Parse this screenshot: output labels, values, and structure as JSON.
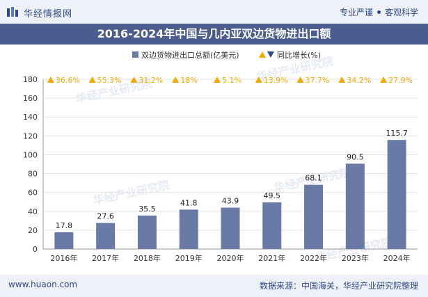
{
  "header": {
    "brand": "华经情报网",
    "tagline_left": "专业严谨",
    "tagline_right": "客观科学"
  },
  "footer": {
    "site": "www.huaon.com",
    "source": "数据来源：中国海关，华经产业研究院整理"
  },
  "watermark": "华经产业研究院",
  "colors": {
    "bar": "#6a7aa6",
    "growth": "#f5a800",
    "title_band": "#4b5d8f",
    "band_bg": "#eef1f8"
  },
  "chart_data": {
    "type": "bar",
    "title": "2016-2024年中国与几内亚双边货物进出口额",
    "categories": [
      "2016年",
      "2017年",
      "2018年",
      "2019年",
      "2020年",
      "2021年",
      "2022年",
      "2023年",
      "2024年"
    ],
    "series": [
      {
        "name": "双边货物进出口总额(亿美元)",
        "values": [
          17.8,
          27.6,
          35.5,
          41.8,
          43.9,
          49.5,
          68.1,
          90.5,
          115.7
        ]
      },
      {
        "name": "同比增长(%)",
        "values": [
          36.6,
          55.3,
          31.2,
          18,
          5.1,
          13.9,
          37.7,
          34.2,
          27.9
        ],
        "labels": [
          "36.6%",
          "55.3%",
          "31.2%",
          "18%",
          "5.1%",
          "13.9%",
          "37.7%",
          "34.2%",
          "27.9%"
        ]
      }
    ],
    "ylim": [
      0,
      180
    ],
    "yticks": [
      0,
      20,
      40,
      60,
      80,
      100,
      120,
      140,
      160,
      180
    ],
    "legend": "top-center",
    "grid": true
  }
}
